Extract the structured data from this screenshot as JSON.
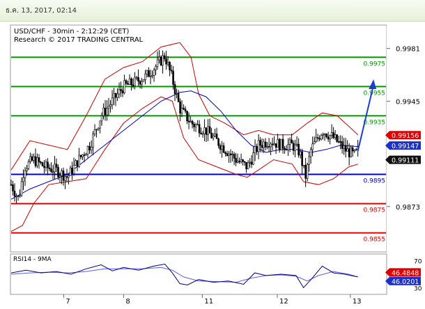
{
  "header": {
    "datetime": "ธ.ค. 13, 2017, 02:14"
  },
  "colors": {
    "accent_green": "#008000",
    "resistance_green": "#009a00",
    "pivot_blue": "#0000cc",
    "support_red": "#dd0000",
    "bollinger_red": "#cc0000",
    "ma_blue": "#0000cc",
    "candle": "#000000",
    "rsi_line": "#000080",
    "rsi_ma": "#5a5af0",
    "badge_red": "#dd0000",
    "badge_blue": "#1c2fc8",
    "badge_black": "#111111",
    "forecast_arrow": "#1a3fd0"
  },
  "chart_data": {
    "type": "candlestick",
    "title": "USD/CHF - 30min - 2:12:29 (CET)",
    "subtitle": "Research © 2017 TRADING CENTRAL",
    "ylim": [
      0.9842,
      0.9997
    ],
    "y_ticks": [
      "0.9981",
      "0.9945",
      "0.9873"
    ],
    "x_ticks": [
      {
        "label": "7",
        "t": 0.14
      },
      {
        "label": "8",
        "t": 0.3
      },
      {
        "label": "11",
        "t": 0.51
      },
      {
        "label": "12",
        "t": 0.71
      },
      {
        "label": "13",
        "t": 0.905
      }
    ],
    "levels": [
      {
        "label": "0.9975",
        "value": 0.9975,
        "kind": "resistance"
      },
      {
        "label": "0.9955",
        "value": 0.9955,
        "kind": "resistance"
      },
      {
        "label": "0.9935",
        "value": 0.9935,
        "kind": "resistance"
      },
      {
        "label": "0.9895",
        "value": 0.9895,
        "kind": "pivot"
      },
      {
        "label": "0.9875",
        "value": 0.9875,
        "kind": "support"
      },
      {
        "label": "0.9855",
        "value": 0.9855,
        "kind": "support"
      }
    ],
    "badges": [
      {
        "label": "0.99156",
        "value": 0.99156,
        "kind": "red"
      },
      {
        "label": "0.99147",
        "value": 0.99147,
        "kind": "blue"
      },
      {
        "label": "0.99111",
        "value": 0.99111,
        "kind": "black"
      }
    ],
    "price_path": [
      {
        "t": 0.0,
        "v": 0.9888
      },
      {
        "t": 0.02,
        "v": 0.9878
      },
      {
        "t": 0.035,
        "v": 0.99
      },
      {
        "t": 0.06,
        "v": 0.9905
      },
      {
        "t": 0.09,
        "v": 0.99
      },
      {
        "t": 0.12,
        "v": 0.9898
      },
      {
        "t": 0.15,
        "v": 0.9893
      },
      {
        "t": 0.18,
        "v": 0.9905
      },
      {
        "t": 0.21,
        "v": 0.9915
      },
      {
        "t": 0.24,
        "v": 0.9935
      },
      {
        "t": 0.27,
        "v": 0.9945
      },
      {
        "t": 0.3,
        "v": 0.9955
      },
      {
        "t": 0.33,
        "v": 0.9958
      },
      {
        "t": 0.36,
        "v": 0.9962
      },
      {
        "t": 0.39,
        "v": 0.997
      },
      {
        "t": 0.41,
        "v": 0.9976
      },
      {
        "t": 0.43,
        "v": 0.996
      },
      {
        "t": 0.45,
        "v": 0.994
      },
      {
        "t": 0.48,
        "v": 0.993
      },
      {
        "t": 0.52,
        "v": 0.9925
      },
      {
        "t": 0.56,
        "v": 0.9915
      },
      {
        "t": 0.6,
        "v": 0.9905
      },
      {
        "t": 0.63,
        "v": 0.99
      },
      {
        "t": 0.66,
        "v": 0.9915
      },
      {
        "t": 0.69,
        "v": 0.9918
      },
      {
        "t": 0.72,
        "v": 0.9915
      },
      {
        "t": 0.75,
        "v": 0.9915
      },
      {
        "t": 0.77,
        "v": 0.991
      },
      {
        "t": 0.785,
        "v": 0.9893
      },
      {
        "t": 0.8,
        "v": 0.9912
      },
      {
        "t": 0.83,
        "v": 0.9925
      },
      {
        "t": 0.86,
        "v": 0.992
      },
      {
        "t": 0.89,
        "v": 0.9912
      },
      {
        "t": 0.915,
        "v": 0.9908
      },
      {
        "t": 0.925,
        "v": 0.9911
      }
    ],
    "bb_upper": [
      {
        "t": 0.0,
        "v": 0.9898
      },
      {
        "t": 0.05,
        "v": 0.9918
      },
      {
        "t": 0.1,
        "v": 0.9915
      },
      {
        "t": 0.15,
        "v": 0.9912
      },
      {
        "t": 0.2,
        "v": 0.9935
      },
      {
        "t": 0.25,
        "v": 0.996
      },
      {
        "t": 0.3,
        "v": 0.9968
      },
      {
        "t": 0.35,
        "v": 0.9972
      },
      {
        "t": 0.4,
        "v": 0.9982
      },
      {
        "t": 0.45,
        "v": 0.9985
      },
      {
        "t": 0.48,
        "v": 0.9975
      },
      {
        "t": 0.5,
        "v": 0.995
      },
      {
        "t": 0.53,
        "v": 0.9935
      },
      {
        "t": 0.57,
        "v": 0.993
      },
      {
        "t": 0.62,
        "v": 0.9922
      },
      {
        "t": 0.66,
        "v": 0.9925
      },
      {
        "t": 0.7,
        "v": 0.9922
      },
      {
        "t": 0.75,
        "v": 0.9922
      },
      {
        "t": 0.79,
        "v": 0.993
      },
      {
        "t": 0.83,
        "v": 0.9937
      },
      {
        "t": 0.87,
        "v": 0.9935
      },
      {
        "t": 0.9,
        "v": 0.9928
      },
      {
        "t": 0.925,
        "v": 0.9922
      }
    ],
    "bb_lower": [
      {
        "t": 0.0,
        "v": 0.9856
      },
      {
        "t": 0.03,
        "v": 0.986
      },
      {
        "t": 0.06,
        "v": 0.9875
      },
      {
        "t": 0.1,
        "v": 0.9888
      },
      {
        "t": 0.15,
        "v": 0.989
      },
      {
        "t": 0.2,
        "v": 0.9892
      },
      {
        "t": 0.25,
        "v": 0.9912
      },
      {
        "t": 0.3,
        "v": 0.993
      },
      {
        "t": 0.35,
        "v": 0.994
      },
      {
        "t": 0.4,
        "v": 0.9948
      },
      {
        "t": 0.43,
        "v": 0.9945
      },
      {
        "t": 0.46,
        "v": 0.992
      },
      {
        "t": 0.5,
        "v": 0.9905
      },
      {
        "t": 0.55,
        "v": 0.99
      },
      {
        "t": 0.6,
        "v": 0.9895
      },
      {
        "t": 0.63,
        "v": 0.9893
      },
      {
        "t": 0.66,
        "v": 0.9898
      },
      {
        "t": 0.7,
        "v": 0.9905
      },
      {
        "t": 0.75,
        "v": 0.9902
      },
      {
        "t": 0.78,
        "v": 0.989
      },
      {
        "t": 0.82,
        "v": 0.9888
      },
      {
        "t": 0.86,
        "v": 0.9892
      },
      {
        "t": 0.9,
        "v": 0.99
      },
      {
        "t": 0.925,
        "v": 0.9902
      }
    ],
    "ma_path": [
      {
        "t": 0.0,
        "v": 0.9878
      },
      {
        "t": 0.05,
        "v": 0.9885
      },
      {
        "t": 0.1,
        "v": 0.989
      },
      {
        "t": 0.15,
        "v": 0.9895
      },
      {
        "t": 0.2,
        "v": 0.9905
      },
      {
        "t": 0.25,
        "v": 0.9915
      },
      {
        "t": 0.3,
        "v": 0.9925
      },
      {
        "t": 0.35,
        "v": 0.9935
      },
      {
        "t": 0.4,
        "v": 0.9945
      },
      {
        "t": 0.45,
        "v": 0.9951
      },
      {
        "t": 0.48,
        "v": 0.9952
      },
      {
        "t": 0.52,
        "v": 0.9948
      },
      {
        "t": 0.56,
        "v": 0.9938
      },
      {
        "t": 0.6,
        "v": 0.9925
      },
      {
        "t": 0.64,
        "v": 0.9915
      },
      {
        "t": 0.68,
        "v": 0.991
      },
      {
        "t": 0.72,
        "v": 0.9912
      },
      {
        "t": 0.76,
        "v": 0.9912
      },
      {
        "t": 0.8,
        "v": 0.991
      },
      {
        "t": 0.84,
        "v": 0.9912
      },
      {
        "t": 0.88,
        "v": 0.9915
      },
      {
        "t": 0.925,
        "v": 0.9914
      }
    ],
    "forecast": [
      {
        "t": 0.925,
        "v": 0.9911
      },
      {
        "t": 0.965,
        "v": 0.9958
      }
    ],
    "rsi": {
      "label": "RSI14 - 9MA",
      "ylim": [
        20,
        80
      ],
      "y_ticks": [
        "70",
        "30"
      ],
      "badges": [
        {
          "label": "46.4848",
          "value": 46.4848,
          "kind": "red"
        },
        {
          "label": "46.0201",
          "value": 46.0201,
          "kind": "blue"
        }
      ],
      "line": [
        {
          "t": 0.0,
          "v": 52
        },
        {
          "t": 0.04,
          "v": 56
        },
        {
          "t": 0.08,
          "v": 52
        },
        {
          "t": 0.12,
          "v": 54
        },
        {
          "t": 0.16,
          "v": 50
        },
        {
          "t": 0.2,
          "v": 58
        },
        {
          "t": 0.24,
          "v": 64
        },
        {
          "t": 0.27,
          "v": 55
        },
        {
          "t": 0.3,
          "v": 60
        },
        {
          "t": 0.34,
          "v": 56
        },
        {
          "t": 0.38,
          "v": 62
        },
        {
          "t": 0.41,
          "v": 65
        },
        {
          "t": 0.43,
          "v": 52
        },
        {
          "t": 0.45,
          "v": 36
        },
        {
          "t": 0.47,
          "v": 34
        },
        {
          "t": 0.5,
          "v": 42
        },
        {
          "t": 0.54,
          "v": 38
        },
        {
          "t": 0.58,
          "v": 40
        },
        {
          "t": 0.62,
          "v": 35
        },
        {
          "t": 0.65,
          "v": 52
        },
        {
          "t": 0.68,
          "v": 48
        },
        {
          "t": 0.72,
          "v": 50
        },
        {
          "t": 0.76,
          "v": 48
        },
        {
          "t": 0.78,
          "v": 30
        },
        {
          "t": 0.8,
          "v": 42
        },
        {
          "t": 0.83,
          "v": 62
        },
        {
          "t": 0.86,
          "v": 52
        },
        {
          "t": 0.89,
          "v": 50
        },
        {
          "t": 0.925,
          "v": 46
        }
      ],
      "ma": [
        {
          "t": 0.0,
          "v": 50
        },
        {
          "t": 0.05,
          "v": 52
        },
        {
          "t": 0.1,
          "v": 53
        },
        {
          "t": 0.15,
          "v": 52
        },
        {
          "t": 0.2,
          "v": 54
        },
        {
          "t": 0.25,
          "v": 58
        },
        {
          "t": 0.3,
          "v": 58
        },
        {
          "t": 0.35,
          "v": 58
        },
        {
          "t": 0.4,
          "v": 60
        },
        {
          "t": 0.43,
          "v": 56
        },
        {
          "t": 0.46,
          "v": 46
        },
        {
          "t": 0.5,
          "v": 40
        },
        {
          "t": 0.55,
          "v": 39
        },
        {
          "t": 0.6,
          "v": 38
        },
        {
          "t": 0.64,
          "v": 44
        },
        {
          "t": 0.68,
          "v": 48
        },
        {
          "t": 0.72,
          "v": 49
        },
        {
          "t": 0.76,
          "v": 47
        },
        {
          "t": 0.79,
          "v": 40
        },
        {
          "t": 0.82,
          "v": 48
        },
        {
          "t": 0.86,
          "v": 54
        },
        {
          "t": 0.9,
          "v": 50
        },
        {
          "t": 0.925,
          "v": 46
        }
      ]
    }
  }
}
